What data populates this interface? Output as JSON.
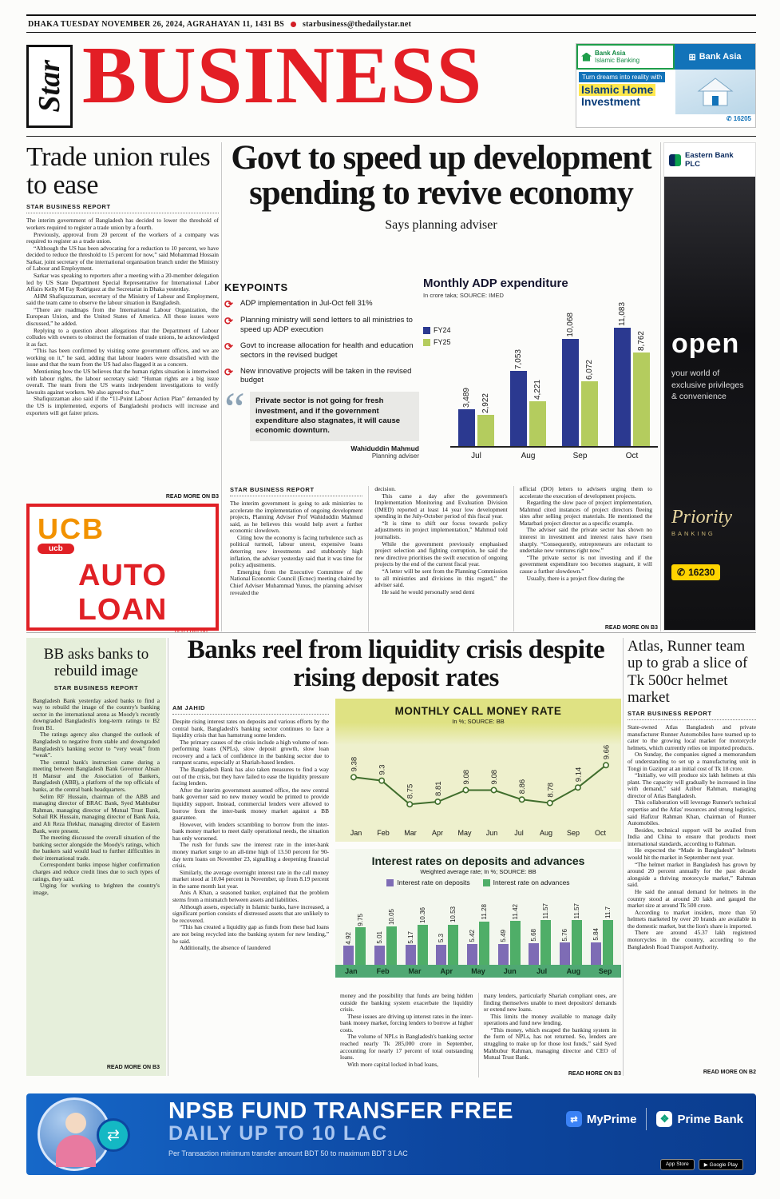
{
  "meta": {
    "dateline": "DHAKA TUESDAY NOVEMBER 26, 2024, AGRAHAYAN 11, 1431 BS",
    "email": "starbusiness@thedailystar.net"
  },
  "masthead": {
    "logo": "Star",
    "title": "BUSINESS"
  },
  "colors": {
    "masthead_red": "#e31e25",
    "keypoint_red": "#d21f26",
    "prime_blue": "#0d47a1"
  },
  "ads": {
    "bank_asia": {
      "islamic_brand": "Bank Asia",
      "islamic_sub": "Islamic Banking",
      "brand": "Bank Asia",
      "tagline": "Turn dreams into reality with",
      "product1": "Islamic Home",
      "product2": "Investment",
      "hotline": "16205"
    },
    "ebl": {
      "brand": "Eastern Bank PLC",
      "open_word": "open",
      "tagline": "your world of exclusive privileges & convenience",
      "priority": "Priority",
      "banking": "BANKING",
      "hotline": "16230"
    },
    "ucb": {
      "brand": "UCB",
      "pill": "ucb",
      "product": "AUTO LOAN",
      "url": "ucb.com.bd"
    },
    "prime": {
      "title": "NPSB FUND TRANSFER FREE",
      "subtitle": "DAILY UP TO 10 LAC",
      "terms": "Per Transaction minimum transfer amount BDT 50 to maximum BDT 3 LAC",
      "myprime": "MyPrime",
      "bank": "Prime Bank",
      "appstore": "App Store",
      "playstore": "Google Play"
    }
  },
  "articles": {
    "trade_union": {
      "headline": "Trade union rules to ease",
      "byline": "STAR BUSINESS REPORT",
      "read_more": "READ MORE ON B3",
      "body": [
        "The interim government of Bangladesh has decided to lower the threshold of workers required to register a trade union by a fourth.",
        "Previously, approval from 20 percent of the workers of a company was required to register as a trade union.",
        "“Although the US has been advocating for a reduction to 10 percent, we have decided to reduce the threshold to 15 percent for now,” said Mohammad Hossain Sarkar, joint secretary of the international organisation branch under the Ministry of Labour and Employment.",
        "Sarkar was speaking to reporters after a meeting with a 20-member delegation led by US State Department Special Representative for International Labor Affairs Kelly M Fay Rodriguez at the Secretariat in Dhaka yesterday.",
        "AHM Shafiquzzaman, secretary of the Ministry of Labour and Employment, said the team came to observe the labour situation in Bangladesh.",
        "“There are roadmaps from the International Labour Organization, the European Union, and the United States of America. All those issues were discussed,” he added.",
        "Replying to a question about allegations that the Department of Labour colludes with owners to obstruct the formation of trade unions, he acknowledged it as fact.",
        "“This has been confirmed by visiting some government offices, and we are working on it,” he said, adding that labour leaders were dissatisfied with the issue and that the team from the US had also flagged it as a concern.",
        "Mentioning how the US believes that the human rights situation is intertwined with labour rights, the labour secretary said: “Human rights are a big issue overall. The team from the US wants independent investigations to verify lawsuits against workers. We also agreed to that.”",
        "Shafiquzzaman also said if the “11-Point Labour Action Plan” demanded by the US is implemented, exports of Bangladeshi products will increase and exporters will get fairer prices."
      ]
    },
    "lead": {
      "headline": "Govt to speed up development spending to revive economy",
      "subhead": "Says planning adviser",
      "byline": "STAR BUSINESS REPORT",
      "keypoints_title": "KEYPOINTS",
      "keypoints": [
        "ADP implementation in Jul-Oct fell 31%",
        "Planning ministry will send letters to all ministries to speed up ADP execution",
        "Govt to increase allocation for health and education sectors in the revised budget",
        "New innovative projects will be taken in the revised budget"
      ],
      "quote": "Private sector is not going for fresh investment, and if the government expenditure also stagnates, it will cause economic downturn.",
      "quote_author": "Wahiduddin Mahmud",
      "quote_role": "Planning adviser",
      "read_more": "READ MORE ON B3",
      "col1": [
        "The interim government is going to ask ministries to accelerate the implementation of ongoing development projects, Planning Adviser Prof Wahiduddin Mahmud said, as he believes this would help avert a further economic slowdown.",
        "Citing how the economy is facing turbulence such as political turmoil, labour unrest, expensive loans deterring new investments and stubbornly high inflation, the adviser yesterday said that it was time for policy adjustments.",
        "Emerging from the Executive Committee of the National Economic Council (Ecnec) meeting chaired by Chief Adviser Muhammad Yunus, the planning adviser revealed the"
      ],
      "col2": [
        "decision.",
        "This came a day after the government's Implementation Monitoring and Evaluation Division (IMED) reported at least 14 year low development spending in the July-October period of this fiscal year.",
        "“It is time to shift our focus towards policy adjustments in project implementation,” Mahmud told journalists.",
        "While the government previously emphasised project selection and fighting corruption, he said the new directive prioritises the swift execution of ongoing projects by the end of the current fiscal year.",
        "“A letter will be sent from the Planning Commission to all ministries and divisions in this regard,” the adviser said.",
        "He said he would personally send demi"
      ],
      "col3": [
        "official (DO) letters to advisers urging them to accelerate the execution of development projects.",
        "Regarding the slow pace of project implementation, Mahmud cited instances of project directors fleeing sites after selling project materials. He mentioned the Matarbari project director as a specific example.",
        "The adviser said the private sector has shown no interest in investment and interest rates have risen sharply. “Consequently, entrepreneurs are reluctant to undertake new ventures right now.”",
        "“The private sector is not investing and if the government expenditure too becomes stagnant, it will cause a further slowdown.”",
        "Usually, there is a project flow during the"
      ]
    },
    "bb": {
      "headline": "BB asks banks to rebuild image",
      "byline": "STAR BUSINESS REPORT",
      "read_more": "READ MORE ON B3",
      "body": [
        "Bangladesh Bank yesterday asked banks to find a way to rebuild the image of the country's banking sector in the international arena as Moody's recently downgraded Bangladesh's long-term ratings to B2 from B1.",
        "The ratings agency also changed the outlook of Bangladesh to negative from stable and downgraded Bangladesh's banking sector to “very weak” from “weak”.",
        "The central bank's instruction came during a meeting between Bangladesh Bank Governor Ahsan H Mansur and the Association of Bankers, Bangladesh (ABB), a platform of the top officials of banks, at the central bank headquarters.",
        "Selim RF Hussain, chairman of the ABB and managing director of BRAC Bank, Syed Mahbubur Rahman, managing director of Mutual Trust Bank, Sohail RK Hussain, managing director of Bank Asia, and Ali Reza Iftekhar, managing director of Eastern Bank, were present.",
        "The meeting discussed the overall situation of the banking sector alongside the Moody's ratings, which the bankers said would lead to further difficulties in their international trade.",
        "Correspondent banks impose higher confirmation charges and reduce credit lines due to such types of ratings, they said.",
        "Urging for working to brighten the country's image,"
      ]
    },
    "banks": {
      "headline": "Banks reel from liquidity crisis despite rising deposit rates",
      "byline": "AM JAHID",
      "read_more": "READ MORE ON B3",
      "col1": [
        "Despite rising interest rates on deposits and various efforts by the central bank, Bangladesh's banking sector continues to face a liquidity crisis that has hamstrung some lenders.",
        "The primary causes of the crisis include a high volume of non-performing loans (NPLs), slow deposit growth, slow loan recovery and a lack of confidence in the banking sector due to rampant scams, especially at Shariah-based lenders.",
        "The Bangladesh Bank has also taken measures to find a way out of the crisis, but they have failed to ease the liquidity pressure facing lenders.",
        "After the interim government assumed office, the new central bank governor said no new money would be printed to provide liquidity support. Instead, commercial lenders were allowed to borrow from the inter-bank money market against a BB guarantee.",
        "However, with lenders scrambling to borrow from the inter-bank money market to meet daily operational needs, the situation has only worsened.",
        "The rush for funds saw the interest rate in the inter-bank money market surge to an all-time high of 13.50 percent for 90-day term loans on November 23, signalling a deepening financial crisis.",
        "Similarly, the average overnight interest rate in the call money market stood at 10.04 percent in November, up from 8.19 percent in the same month last year.",
        "Anis A Khan, a seasoned banker, explained that the problem stems from a mismatch between assets and liabilities.",
        "Although assets, especially in Islamic banks, have increased, a significant portion consists of distressed assets that are unlikely to be recovered.",
        "“This has created a liquidity gap as funds from these bad loans are not being recycled into the banking system for new lending,” he said.",
        "Additionally, the absence of laundered"
      ],
      "col2": [
        "money and the possibility that funds are being hidden outside the banking system exacerbate the liquidity crisis.",
        "These issues are driving up interest rates in the inter-bank money market, forcing lenders to borrow at higher costs.",
        "The volume of NPLs in Bangladesh's banking sector reached nearly Tk 285,000 crore in September, accounting for nearly 17 percent of total outstanding loans.",
        "With more capital locked in bad loans,"
      ],
      "col3": [
        "many lenders, particularly Shariah compliant ones, are finding themselves unable to meet depositors' demands or extend new loans.",
        "This limits the money available to manage daily operations and fund new lending.",
        "“This money, which escaped the banking system in the form of NPLs, has not returned. So, lenders are struggling to make up for those lost funds,” said Syed Mahbubur Rahman, managing director and CEO of Mutual Trust Bank."
      ]
    },
    "atlas": {
      "headline": "Atlas, Runner team up to grab a slice of Tk 500cr helmet market",
      "byline": "STAR BUSINESS REPORT",
      "read_more": "READ MORE ON B2",
      "body": [
        "State-owned Atlas Bangladesh and private manufacturer Runner Automobiles have teamed up to cater to the growing local market for motorcycle helmets, which currently relies on imported products.",
        "On Sunday, the companies signed a memorandum of understanding to set up a manufacturing unit in Tongi in Gazipur at an initial cost of Tk 18 crore.",
        "“Initially, we will produce six lakh helmets at this plant. The capacity will gradually be increased in line with demand,” said Azibor Rahman, managing director of Atlas Bangladesh.",
        "This collaboration will leverage Runner's technical expertise and the Atlas' resources and strong logistics, said Hafizur Rahman Khan, chairman of Runner Automobiles.",
        "Besides, technical support will be availed from India and China to ensure that products meet international standards, according to Rahman.",
        "He expected the “Made in Bangladesh” helmets would hit the market in September next year.",
        "“The helmet market in Bangladesh has grown by around 20 percent annually for the past decade alongside a thriving motorcycle market,” Rahman said.",
        "He said the annual demand for helmets in the country stood at around 20 lakh and gauged the market size at around Tk 500 crore.",
        "According to market insiders, more than 50 helmets marketed by over 20 brands are available in the domestic market, but the lion's share is imported.",
        "There are around 45.37 lakh registered motorcycles in the country, according to the Bangladesh Road Transport Authority."
      ]
    }
  },
  "chart_data": [
    {
      "type": "bar",
      "title": "Monthly ADP expenditure",
      "subtitle": "In crore taka; SOURCE: IMED",
      "categories": [
        "Jul",
        "Aug",
        "Sep",
        "Oct"
      ],
      "series": [
        {
          "name": "FY24",
          "color": "#2b3990",
          "values": [
            3489,
            7053,
            10068,
            11083
          ]
        },
        {
          "name": "FY25",
          "color": "#b4cc5e",
          "values": [
            2922,
            4221,
            6072,
            8762
          ]
        }
      ],
      "value_labels": [
        [
          "3,489",
          "7,053",
          "10,068",
          "11,083"
        ],
        [
          "2,922",
          "4,221",
          "6,072",
          "8,762"
        ]
      ],
      "ylim": [
        0,
        13500
      ],
      "legend_position": "left",
      "grid": false
    },
    {
      "type": "line",
      "title": "MONTHLY CALL MONEY RATE",
      "subtitle": "In %; SOURCE: BB",
      "categories": [
        "Jan",
        "Feb",
        "Mar",
        "Apr",
        "May",
        "Jun",
        "Jul",
        "Aug",
        "Sep",
        "Oct"
      ],
      "values": [
        9.38,
        9.3,
        8.75,
        8.81,
        9.08,
        9.08,
        8.86,
        8.78,
        9.14,
        9.66
      ],
      "ylim": [
        8.4,
        10.0
      ],
      "color": "#3f6d2c",
      "grid": false
    },
    {
      "type": "bar",
      "title": "Interest rates on deposits and advances",
      "subtitle": "Weighted average rate; In %; SOURCE: BB",
      "categories": [
        "Jan",
        "Feb",
        "Mar",
        "Apr",
        "May",
        "Jun",
        "Jul",
        "Aug",
        "Sep"
      ],
      "series": [
        {
          "name": "Interest rate on deposits",
          "color": "#7e6cb5",
          "values": [
            4.92,
            5.01,
            5.17,
            5.3,
            5.42,
            5.49,
            5.68,
            5.76,
            5.84
          ]
        },
        {
          "name": "Interest rate on advances",
          "color": "#4fae68",
          "values": [
            9.75,
            10.05,
            10.36,
            10.53,
            11.28,
            11.42,
            11.57,
            11.57,
            11.7
          ]
        }
      ],
      "ylim": [
        0,
        20
      ],
      "legend_position": "top",
      "grid": false
    }
  ]
}
